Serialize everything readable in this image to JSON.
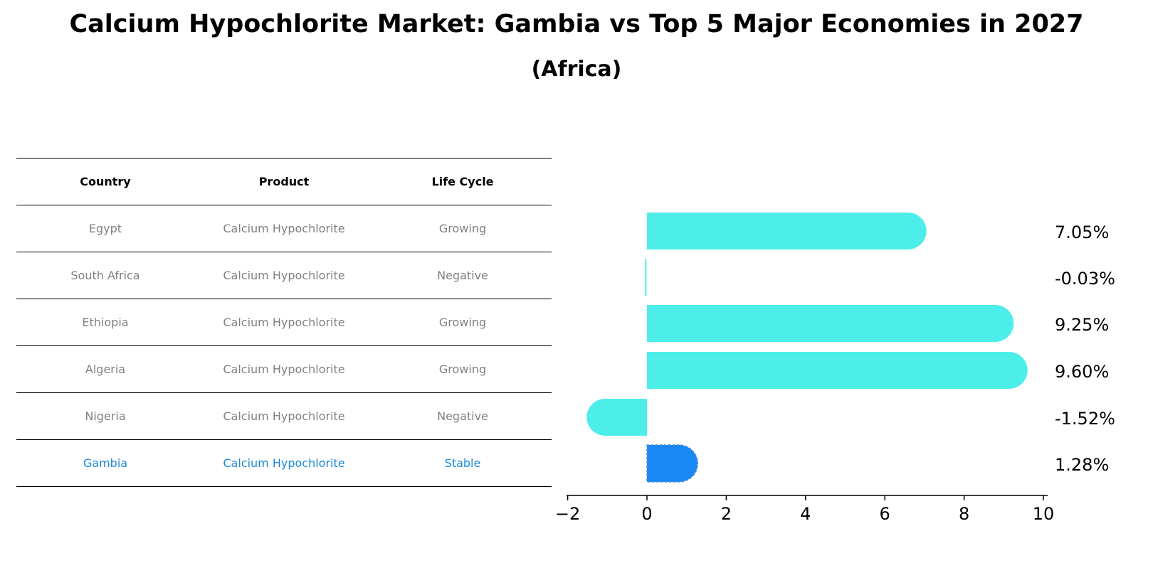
{
  "title": "Calcium Hypochlorite Market: Gambia vs Top 5 Major Economies in 2027",
  "subtitle": "(Africa)",
  "table": {
    "headers": [
      "Country",
      "Product",
      "Life Cycle"
    ],
    "rows": [
      [
        "Egypt",
        "Calcium Hypochlorite",
        "Growing"
      ],
      [
        "South Africa",
        "Calcium Hypochlorite",
        "Negative"
      ],
      [
        "Ethiopia",
        "Calcium Hypochlorite",
        "Growing"
      ],
      [
        "Algeria",
        "Calcium Hypochlorite",
        "Growing"
      ],
      [
        "Nigeria",
        "Calcium Hypochlorite",
        "Negative"
      ],
      [
        "Gambia",
        "Calcium Hypochlorite",
        "Stable"
      ]
    ],
    "highlight_row": 5
  },
  "chart_data": {
    "type": "bar",
    "orientation": "horizontal",
    "categories": [
      "Egypt",
      "South Africa",
      "Ethiopia",
      "Algeria",
      "Nigeria",
      "Gambia"
    ],
    "values": [
      7.05,
      -0.03,
      9.25,
      9.6,
      -1.52,
      1.28
    ],
    "data_labels": [
      "7.05%",
      "-0.03%",
      "9.25%",
      "9.60%",
      "-1.52%",
      "1.28%"
    ],
    "xlim": [
      -2,
      10
    ],
    "xticks": [
      -2,
      0,
      2,
      4,
      6,
      8,
      10
    ],
    "xtick_labels": [
      "−2",
      "0",
      "2",
      "4",
      "6",
      "8",
      "10"
    ],
    "colors": {
      "default": "#4deeea",
      "highlight": "#1a87f5"
    },
    "highlight_index": 5,
    "grid": false
  }
}
